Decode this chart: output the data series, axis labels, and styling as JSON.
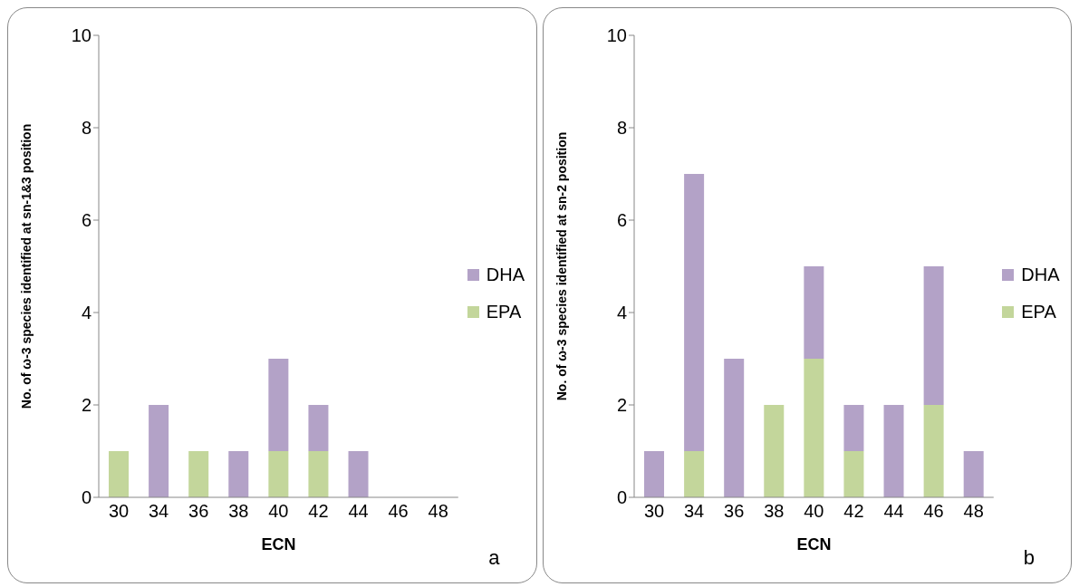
{
  "chart_data": [
    {
      "type": "bar",
      "stacked": true,
      "xlabel": "ECN",
      "ylabel": "No. of ω-3  species identified at sn-1&3 position",
      "categories": [
        "30",
        "34",
        "36",
        "38",
        "40",
        "42",
        "44",
        "46",
        "48"
      ],
      "series": [
        {
          "name": "EPA",
          "color": "#c3d69b",
          "values": [
            1,
            0,
            1,
            0,
            1,
            1,
            0,
            0,
            0
          ]
        },
        {
          "name": "DHA",
          "color": "#b3a2c7",
          "values": [
            0,
            2,
            0,
            1,
            2,
            1,
            1,
            0,
            0
          ]
        }
      ],
      "ylim": [
        0,
        10
      ],
      "yticks": [
        0,
        2,
        4,
        6,
        8,
        10
      ],
      "grid": false,
      "legend": "right",
      "annotations": [
        "a"
      ]
    },
    {
      "type": "bar",
      "stacked": true,
      "xlabel": "ECN",
      "ylabel": "No. of ω-3  species identified at sn-2 position",
      "categories": [
        "30",
        "34",
        "36",
        "38",
        "40",
        "42",
        "44",
        "46",
        "48"
      ],
      "series": [
        {
          "name": "EPA",
          "color": "#c3d69b",
          "values": [
            0,
            1,
            0,
            2,
            3,
            1,
            0,
            2,
            0
          ]
        },
        {
          "name": "DHA",
          "color": "#b3a2c7",
          "values": [
            1,
            6,
            3,
            0,
            2,
            1,
            2,
            3,
            1
          ]
        }
      ],
      "ylim": [
        0,
        10
      ],
      "yticks": [
        0,
        2,
        4,
        6,
        8,
        10
      ],
      "grid": false,
      "legend": "right",
      "annotations": [
        "b"
      ]
    }
  ]
}
